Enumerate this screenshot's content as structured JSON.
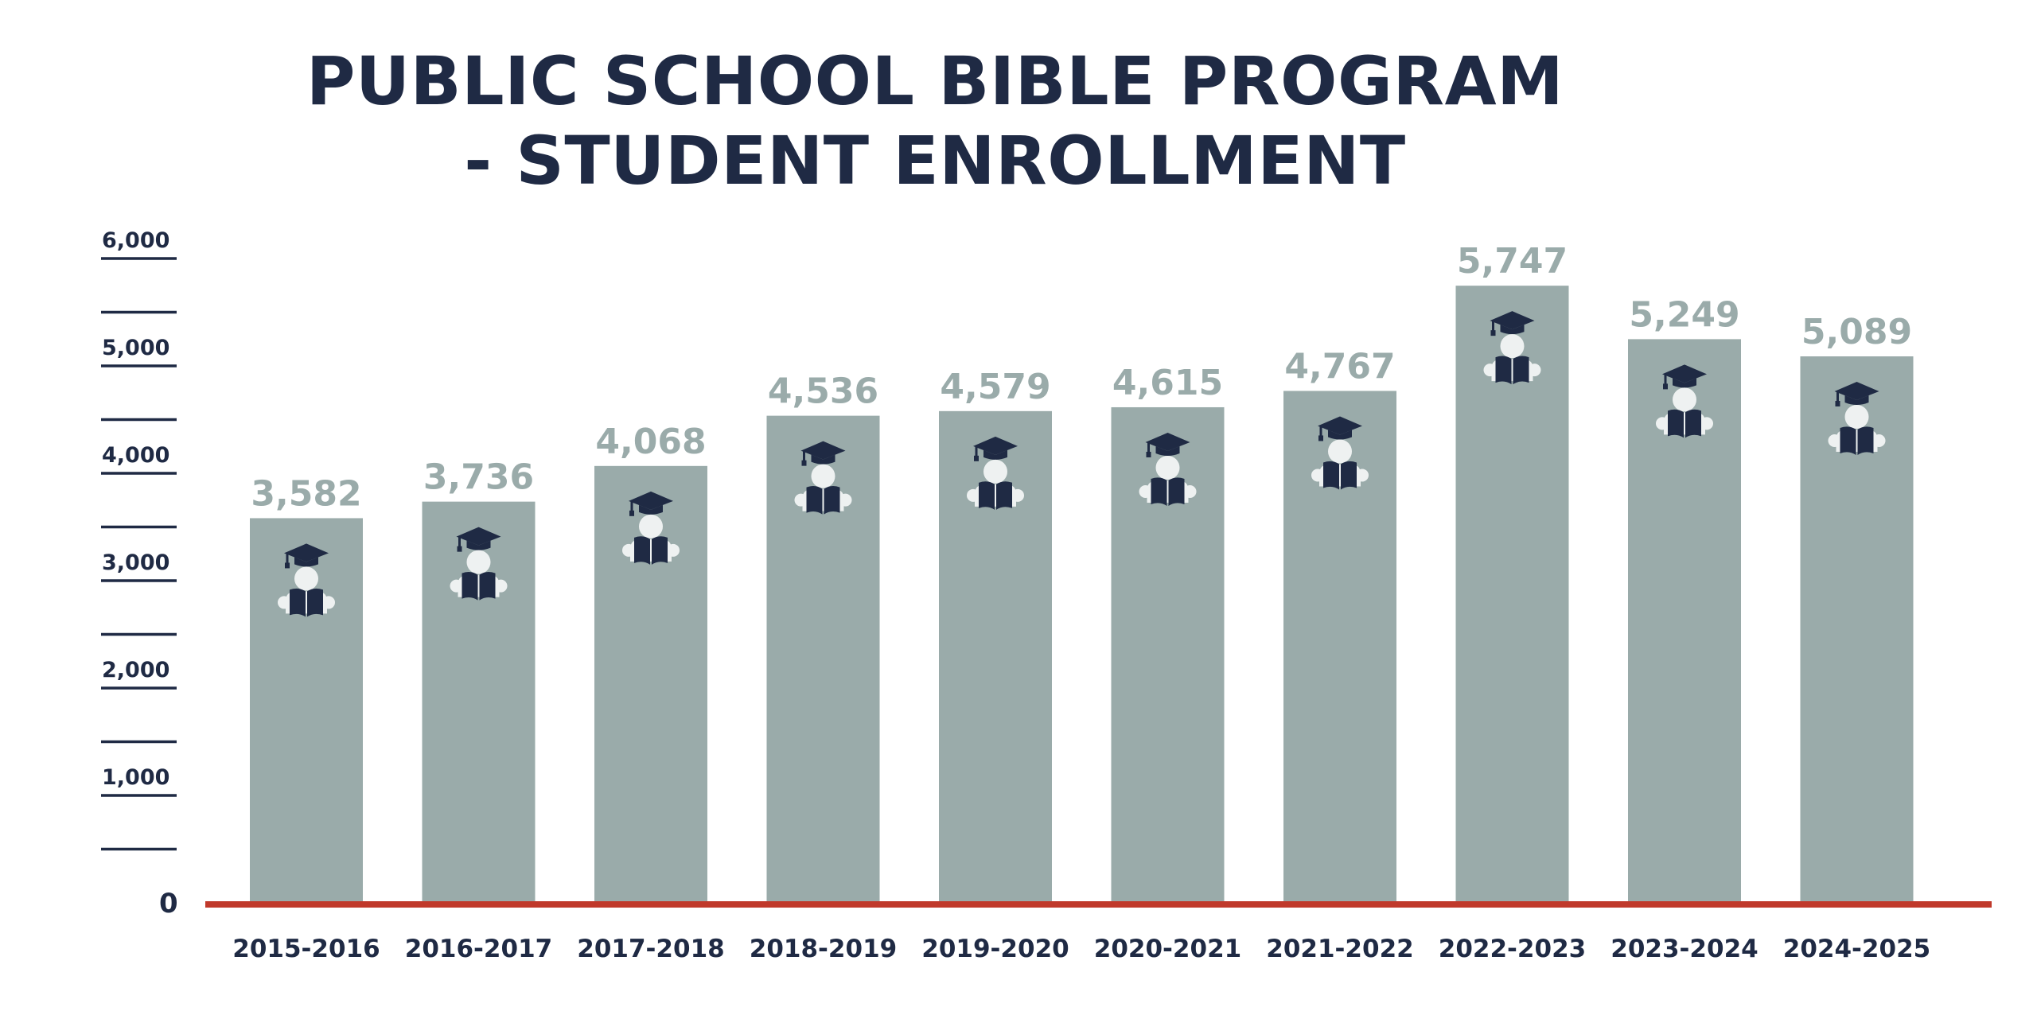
{
  "chart_data": {
    "type": "bar",
    "title_lines": [
      "PUBLIC SCHOOL BIBLE PROGRAM",
      "- STUDENT ENROLLMENT"
    ],
    "categories": [
      "2015-2016",
      "2016-2017",
      "2017-2018",
      "2018-2019",
      "2019-2020",
      "2020-2021",
      "2021-2022",
      "2022-2023",
      "2023-2024",
      "2024-2025"
    ],
    "values": [
      3582,
      3736,
      4068,
      4536,
      4579,
      4615,
      4767,
      5747,
      5249,
      5089
    ],
    "value_labels": [
      "3,582",
      "3,736",
      "4,068",
      "4,536",
      "4,579",
      "4,615",
      "4,767",
      "5,747",
      "5,249",
      "5,089"
    ],
    "y_tick_labels": [
      "0",
      "1,000",
      "2,000",
      "3,000",
      "4,000",
      "5,000",
      "6,000"
    ],
    "ylim": [
      0,
      6000
    ],
    "xlabel": "",
    "ylabel": "",
    "grid": false,
    "bar_icon": "student-reading-graduate-icon",
    "colors": {
      "bar": "#9aabaa",
      "value_label": "#9aabaa",
      "axis": "#c0392b",
      "text": "#1f2a44",
      "icon": "#1f2a44",
      "icon_face": "#eef1f1"
    }
  }
}
